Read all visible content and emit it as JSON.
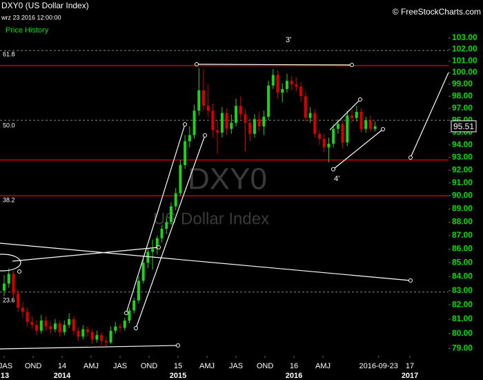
{
  "chart_data": {
    "type": "candlestick",
    "title": "DXY0 (US Dollar Index)",
    "subtitle": "wrz 23 2016 12:00:00",
    "legend": "Price History",
    "credit": "© FreeStockCharts.com",
    "watermark": "DXY0",
    "watermark_name": "US Dollar Index",
    "annotations": [
      "3'",
      "4'"
    ],
    "fib_labels": [
      "61.8",
      "50.0",
      "38.2",
      "23.6"
    ],
    "up_color": "#1ed21e",
    "down_color": "#d60000",
    "log_scale": true,
    "xlim": [
      2013.464,
      2017.333
    ],
    "ylim": [
      78.5,
      106.4
    ],
    "xticks": [
      {
        "value": 2013.5,
        "label": "JAS"
      },
      {
        "value": 2013.75,
        "label": "OND"
      },
      {
        "value": 2014.0,
        "label": "14"
      },
      {
        "value": 2014.25,
        "label": "AMJ"
      },
      {
        "value": 2014.5,
        "label": "JAS"
      },
      {
        "value": 2014.75,
        "label": "OND"
      },
      {
        "value": 2015.0,
        "label": "15"
      },
      {
        "value": 2015.25,
        "label": "AMJ"
      },
      {
        "value": 2015.5,
        "label": "JAS"
      },
      {
        "value": 2015.75,
        "label": "OND"
      },
      {
        "value": 2016.0,
        "label": "16"
      },
      {
        "value": 2016.25,
        "label": "AMJ"
      },
      {
        "value": 2016.73,
        "label": "2016-09-23"
      },
      {
        "value": 2017.0,
        "label": "17"
      }
    ],
    "year_ticks": [
      {
        "value": 2013.5,
        "label": "13"
      },
      {
        "value": 2014.0,
        "label": "2014"
      },
      {
        "value": 2015.0,
        "label": "2015"
      },
      {
        "value": 2016.0,
        "label": "2016"
      },
      {
        "value": 2017.0,
        "label": "2017"
      }
    ],
    "yticks": [
      {
        "value": 79,
        "label": "79.00"
      },
      {
        "value": 80,
        "label": "80.00"
      },
      {
        "value": 81,
        "label": "81.00"
      },
      {
        "value": 82,
        "label": "82.00"
      },
      {
        "value": 83,
        "label": "83.00"
      },
      {
        "value": 84,
        "label": "84.00"
      },
      {
        "value": 85,
        "label": "85.00"
      },
      {
        "value": 86,
        "label": "86.00"
      },
      {
        "value": 87,
        "label": "87.00"
      },
      {
        "value": 88,
        "label": "88.00"
      },
      {
        "value": 89,
        "label": "89.00"
      },
      {
        "value": 90,
        "label": "90.00"
      },
      {
        "value": 91,
        "label": "91.00"
      },
      {
        "value": 92,
        "label": "92.00"
      },
      {
        "value": 93,
        "label": "93.00"
      },
      {
        "value": 94,
        "label": "94.00"
      },
      {
        "value": 95,
        "label": "95.00"
      },
      {
        "value": 96,
        "label": "96.00"
      },
      {
        "value": 97,
        "label": "97.00"
      },
      {
        "value": 98,
        "label": "98.00"
      },
      {
        "value": 99,
        "label": "99.00"
      },
      {
        "value": 100,
        "label": "100.00"
      },
      {
        "value": 101,
        "label": "101.00"
      },
      {
        "value": 102,
        "label": "102.00"
      },
      {
        "value": 103,
        "label": "103.00"
      }
    ],
    "levels": [
      {
        "value": 100.6,
        "color": "#e00000"
      },
      {
        "value": 92.8,
        "color": "#e00000"
      },
      {
        "value": 90.0,
        "color": "#e00000"
      }
    ],
    "fib_lines": [
      101.9,
      96.0,
      82.9
    ],
    "x": [
      2013.5,
      2013.54,
      2013.58,
      2013.62,
      2013.66,
      2013.7,
      2013.74,
      2013.78,
      2013.82,
      2013.86,
      2013.9,
      2013.94,
      2013.98,
      2014.02,
      2014.06,
      2014.1,
      2014.14,
      2014.18,
      2014.22,
      2014.26,
      2014.3,
      2014.34,
      2014.38,
      2014.42,
      2014.46,
      2014.5,
      2014.54,
      2014.58,
      2014.62,
      2014.66,
      2014.7,
      2014.74,
      2014.78,
      2014.82,
      2014.86,
      2014.9,
      2014.94,
      2014.98,
      2015.02,
      2015.06,
      2015.1,
      2015.14,
      2015.18,
      2015.22,
      2015.26,
      2015.3,
      2015.34,
      2015.38,
      2015.42,
      2015.46,
      2015.5,
      2015.54,
      2015.58,
      2015.62,
      2015.66,
      2015.7,
      2015.74,
      2015.78,
      2015.82,
      2015.86,
      2015.9,
      2015.94,
      2015.98,
      2016.02,
      2016.06,
      2016.1,
      2016.14,
      2016.18,
      2016.22,
      2016.26,
      2016.3,
      2016.34,
      2016.38,
      2016.42,
      2016.46,
      2016.5,
      2016.54,
      2016.58,
      2016.62,
      2016.66,
      2016.7
    ],
    "candles": [
      [
        83.0,
        84.1,
        82.6,
        83.5
      ],
      [
        83.5,
        84.6,
        83.2,
        84.2
      ],
      [
        84.2,
        84.4,
        82.5,
        82.8
      ],
      [
        82.8,
        83.1,
        81.5,
        81.8
      ],
      [
        81.8,
        82.2,
        81.1,
        81.5
      ],
      [
        81.5,
        81.8,
        80.5,
        80.8
      ],
      [
        80.8,
        81.2,
        80.3,
        80.6
      ],
      [
        80.6,
        80.9,
        79.9,
        80.2
      ],
      [
        80.2,
        81.3,
        80.0,
        80.9
      ],
      [
        80.9,
        81.2,
        80.2,
        80.5
      ],
      [
        80.5,
        80.8,
        80.0,
        80.3
      ],
      [
        80.3,
        81.0,
        80.1,
        80.7
      ],
      [
        80.7,
        80.9,
        79.8,
        80.1
      ],
      [
        80.1,
        80.9,
        79.9,
        80.6
      ],
      [
        80.6,
        81.4,
        80.4,
        81.0
      ],
      [
        81.0,
        81.2,
        79.9,
        80.2
      ],
      [
        80.2,
        80.5,
        79.5,
        79.8
      ],
      [
        79.8,
        80.6,
        79.6,
        80.3
      ],
      [
        80.3,
        80.5,
        79.8,
        80.1
      ],
      [
        80.1,
        80.3,
        79.3,
        79.6
      ],
      [
        79.6,
        80.2,
        79.4,
        79.9
      ],
      [
        79.9,
        80.1,
        79.2,
        79.5
      ],
      [
        79.5,
        79.8,
        79.1,
        79.4
      ],
      [
        79.4,
        80.5,
        79.3,
        80.2
      ],
      [
        80.2,
        80.8,
        80.0,
        80.5
      ],
      [
        80.5,
        80.7,
        80.1,
        80.4
      ],
      [
        80.4,
        81.1,
        80.2,
        80.9
      ],
      [
        80.9,
        81.8,
        80.7,
        81.6
      ],
      [
        81.6,
        82.5,
        81.4,
        82.3
      ],
      [
        82.3,
        84.0,
        82.1,
        83.7
      ],
      [
        83.7,
        85.3,
        83.5,
        85.0
      ],
      [
        85.0,
        86.1,
        84.6,
        85.8
      ],
      [
        85.8,
        86.7,
        84.5,
        86.0
      ],
      [
        86.0,
        87.0,
        85.6,
        86.8
      ],
      [
        86.8,
        87.8,
        86.5,
        87.5
      ],
      [
        87.5,
        88.4,
        87.1,
        88.0
      ],
      [
        88.0,
        89.5,
        87.8,
        89.2
      ],
      [
        89.2,
        90.6,
        88.9,
        90.2
      ],
      [
        90.2,
        92.8,
        90.0,
        92.4
      ],
      [
        92.4,
        94.8,
        92.1,
        94.3
      ],
      [
        94.3,
        95.5,
        93.8,
        94.8
      ],
      [
        94.8,
        97.3,
        94.5,
        96.8
      ],
      [
        96.8,
        100.4,
        96.4,
        98.5
      ],
      [
        98.5,
        100.3,
        96.8,
        97.2
      ],
      [
        97.2,
        99.0,
        96.3,
        96.8
      ],
      [
        96.8,
        97.4,
        94.6,
        95.2
      ],
      [
        95.2,
        96.0,
        93.3,
        95.0
      ],
      [
        95.0,
        97.1,
        94.6,
        96.6
      ],
      [
        96.6,
        97.0,
        94.8,
        95.3
      ],
      [
        95.3,
        96.5,
        94.9,
        95.8
      ],
      [
        95.8,
        97.8,
        95.5,
        97.2
      ],
      [
        97.2,
        98.0,
        96.1,
        96.5
      ],
      [
        96.5,
        96.9,
        93.5,
        95.8
      ],
      [
        95.8,
        96.2,
        94.3,
        94.9
      ],
      [
        94.9,
        96.5,
        94.6,
        96.1
      ],
      [
        96.1,
        96.7,
        95.1,
        95.5
      ],
      [
        95.5,
        96.8,
        94.8,
        96.3
      ],
      [
        96.3,
        99.3,
        96.0,
        98.9
      ],
      [
        98.9,
        100.3,
        98.6,
        99.8
      ],
      [
        99.8,
        100.2,
        97.8,
        98.3
      ],
      [
        98.3,
        99.1,
        97.5,
        98.6
      ],
      [
        98.6,
        99.9,
        98.3,
        99.3
      ],
      [
        99.3,
        99.7,
        98.5,
        99.0
      ],
      [
        99.0,
        99.6,
        98.4,
        98.8
      ],
      [
        98.8,
        99.2,
        97.5,
        98.0
      ],
      [
        98.0,
        98.4,
        95.9,
        96.2
      ],
      [
        96.2,
        97.1,
        95.8,
        96.6
      ],
      [
        96.6,
        96.9,
        94.6,
        94.9
      ],
      [
        94.9,
        95.2,
        94.0,
        94.5
      ],
      [
        94.5,
        94.9,
        93.4,
        93.8
      ],
      [
        93.8,
        94.6,
        92.6,
        94.1
      ],
      [
        94.1,
        95.7,
        93.8,
        95.3
      ],
      [
        95.3,
        96.1,
        94.9,
        95.7
      ],
      [
        95.7,
        96.0,
        93.7,
        94.2
      ],
      [
        94.2,
        96.8,
        93.9,
        96.4
      ],
      [
        96.4,
        96.9,
        95.8,
        96.2
      ],
      [
        96.2,
        97.2,
        95.9,
        96.7
      ],
      [
        96.7,
        97.0,
        95.0,
        95.3
      ],
      [
        95.3,
        96.3,
        95.0,
        96.0
      ],
      [
        96.0,
        96.4,
        95.1,
        95.3
      ],
      [
        95.3,
        95.9,
        95.1,
        95.51
      ]
    ]
  }
}
